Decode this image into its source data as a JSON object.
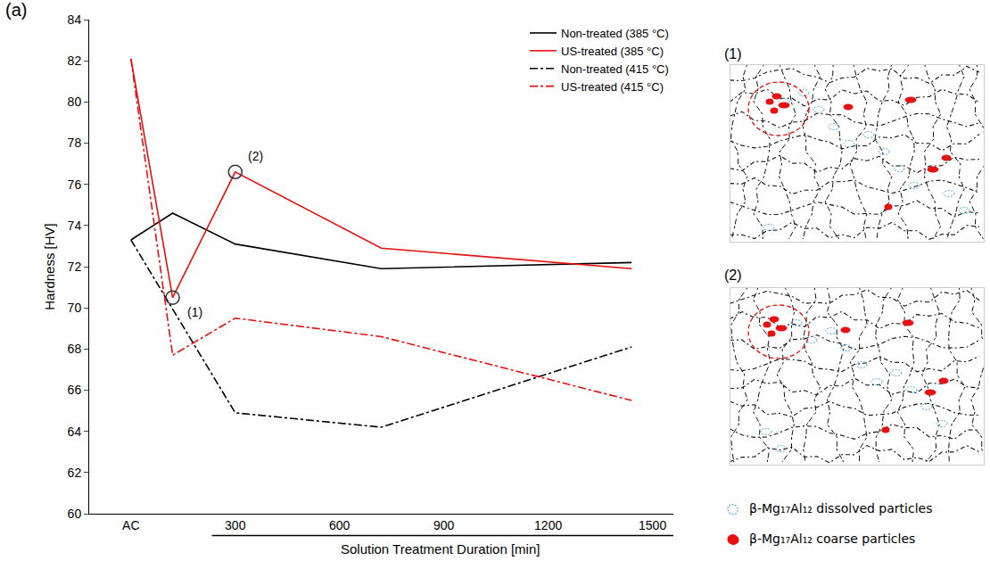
{
  "panel_label": "(a)",
  "chart_data": {
    "type": "line",
    "x_label": "Solution Treatment Duration [min]",
    "y_label": "Hardness [HV]",
    "xlim": [
      -120,
      1560
    ],
    "xticks": [
      {
        "value": 0,
        "label": "AC"
      },
      300,
      600,
      900,
      1200,
      1500
    ],
    "ylim": [
      60,
      84
    ],
    "yticks": [
      60,
      62,
      64,
      66,
      68,
      70,
      72,
      74,
      76,
      78,
      80,
      82,
      84
    ],
    "grid": false,
    "legend": "upper right",
    "series": [
      {
        "name": "Non-treated (385 °C)",
        "color": "#000000",
        "line_style": "solid",
        "x": [
          0,
          120,
          300,
          720,
          1440
        ],
        "values": [
          73.3,
          74.6,
          73.1,
          71.9,
          72.2
        ]
      },
      {
        "name": "US-treated (385 °C)",
        "color": "#e8100f",
        "line_style": "solid",
        "x": [
          0,
          120,
          300,
          720,
          1440
        ],
        "values": [
          82.1,
          70.5,
          76.6,
          72.9,
          71.9
        ]
      },
      {
        "name": "Non-treated (415 °C)",
        "color": "#000000",
        "line_style": "dashdot",
        "x": [
          0,
          300,
          720,
          1440
        ],
        "values": [
          73.3,
          64.9,
          64.2,
          68.1
        ]
      },
      {
        "name": "US-treated (415 °C)",
        "color": "#e8100f",
        "line_style": "dashdot",
        "x": [
          0,
          120,
          300,
          720,
          1440
        ],
        "values": [
          82.1,
          67.7,
          69.5,
          68.6,
          65.5
        ]
      }
    ],
    "annotations": [
      {
        "text": "(1)",
        "x": 120,
        "y": 70.5,
        "marker": "circle"
      },
      {
        "text": "(2)",
        "x": 300,
        "y": 76.6,
        "marker": "circle"
      }
    ]
  },
  "micrographs": [
    {
      "label": "(1)"
    },
    {
      "label": "(2)"
    }
  ],
  "micrograph_legend": [
    {
      "text": "β-Mg₁₇Al₁₂ dissolved particles",
      "color": "#4aa8e0",
      "marker": "dashed"
    },
    {
      "text": "β-Mg₁₇Al₁₂ coarse particles",
      "color": "#e8100f",
      "marker": "filled"
    }
  ]
}
